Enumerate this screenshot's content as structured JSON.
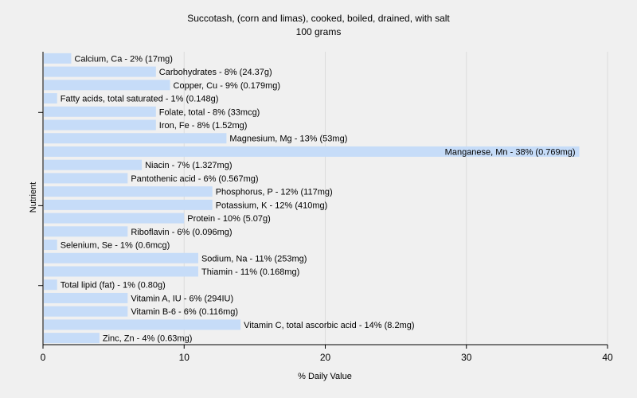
{
  "chart_data": {
    "type": "bar",
    "orientation": "horizontal",
    "title": "Succotash, (corn and limas), cooked, boiled, drained, with salt",
    "subtitle": "100 grams",
    "xlabel": "% Daily Value",
    "ylabel": "Nutrient",
    "xlim": [
      0,
      40
    ],
    "xticks": [
      "0",
      "10",
      "20",
      "30",
      "40"
    ],
    "grid": "vertical",
    "bar_color": "#c6dcf8",
    "categories": [
      "Calcium, Ca",
      "Carbohydrates",
      "Copper, Cu",
      "Fatty acids, total saturated",
      "Folate, total",
      "Iron, Fe",
      "Magnesium, Mg",
      "Manganese, Mn",
      "Niacin",
      "Pantothenic acid",
      "Phosphorus, P",
      "Potassium, K",
      "Protein",
      "Riboflavin",
      "Selenium, Se",
      "Sodium, Na",
      "Thiamin",
      "Total lipid (fat)",
      "Vitamin A, IU",
      "Vitamin B-6",
      "Vitamin C, total ascorbic acid",
      "Zinc, Zn"
    ],
    "values": [
      2,
      8,
      9,
      1,
      8,
      8,
      13,
      38,
      7,
      6,
      12,
      12,
      10,
      6,
      1,
      11,
      11,
      1,
      6,
      6,
      14,
      4
    ],
    "labels": [
      "Calcium, Ca - 2% (17mg)",
      "Carbohydrates - 8% (24.37g)",
      "Copper, Cu - 9% (0.179mg)",
      "Fatty acids, total saturated - 1% (0.148g)",
      "Folate, total - 8% (33mcg)",
      "Iron, Fe - 8% (1.52mg)",
      "Magnesium, Mg - 13% (53mg)",
      "Manganese, Mn - 38% (0.769mg)",
      "Niacin - 7% (1.327mg)",
      "Pantothenic acid - 6% (0.567mg)",
      "Phosphorus, P - 12% (117mg)",
      "Potassium, K - 12% (410mg)",
      "Protein - 10% (5.07g)",
      "Riboflavin - 6% (0.096mg)",
      "Selenium, Se - 1% (0.6mcg)",
      "Sodium, Na - 11% (253mg)",
      "Thiamin - 11% (0.168mg)",
      "Total lipid (fat) - 1% (0.80g)",
      "Vitamin A, IU - 6% (294IU)",
      "Vitamin B-6 - 6% (0.116mg)",
      "Vitamin C, total ascorbic acid - 14% (8.2mg)",
      "Zinc, Zn - 4% (0.63mg)"
    ]
  }
}
